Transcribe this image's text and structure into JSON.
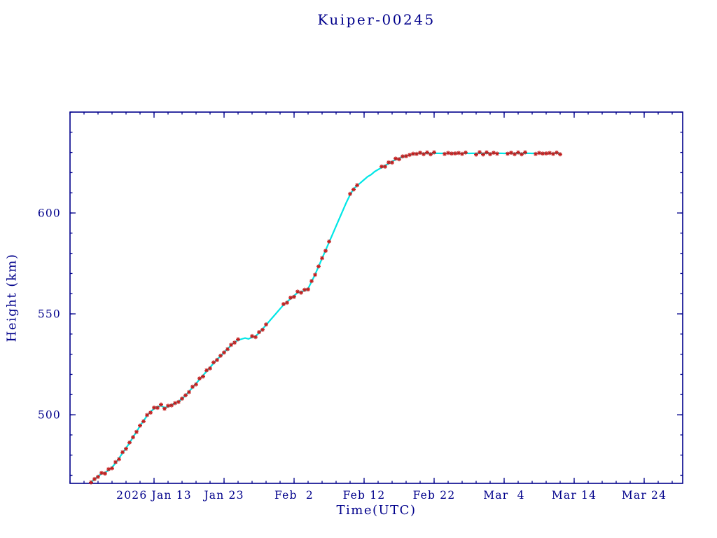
{
  "page": {
    "background": "#ffffff"
  },
  "chart_data": {
    "type": "line",
    "title": "Kuiper-00245",
    "xlabel": "Time(UTC)",
    "ylabel": "Height (km)",
    "axis_color": "#00008b",
    "grid": false,
    "legend": "none",
    "x_unit": "day of year 2026 (Jan 1 = day 1)",
    "xlim_days": [
      1,
      88.5
    ],
    "ylim": [
      466,
      650
    ],
    "x_ticks": [
      {
        "day": 13,
        "label": "2026 Jan 13"
      },
      {
        "day": 23,
        "label": "Jan 23"
      },
      {
        "day": 33,
        "label": "Feb  2"
      },
      {
        "day": 43,
        "label": "Feb 12"
      },
      {
        "day": 53,
        "label": "Feb 22"
      },
      {
        "day": 63,
        "label": "Mar  4"
      },
      {
        "day": 73,
        "label": "Mar 14"
      },
      {
        "day": 83,
        "label": "Mar 24"
      }
    ],
    "x_minor_tick_step_days": 2,
    "y_ticks": [
      500,
      550,
      600
    ],
    "y_minor_tick_step": 10,
    "series": [
      {
        "name": "height-profile-line",
        "style": "line",
        "color": "#00e6e6",
        "stroke_width": 2.2,
        "points": [
          [
            4,
            466.5
          ],
          [
            4.5,
            468.0
          ],
          [
            5,
            469.5
          ],
          [
            5.5,
            470.8
          ],
          [
            6,
            471.3
          ],
          [
            6.5,
            472.5
          ],
          [
            7,
            474.0
          ],
          [
            7.5,
            476.0
          ],
          [
            8,
            478.5
          ],
          [
            8.5,
            481.0
          ],
          [
            9,
            483.5
          ],
          [
            9.5,
            486.0
          ],
          [
            10,
            489.0
          ],
          [
            10.5,
            491.5
          ],
          [
            11,
            494.5
          ],
          [
            11.5,
            497.0
          ],
          [
            12,
            499.5
          ],
          [
            12.5,
            501.5
          ],
          [
            13,
            503.0
          ],
          [
            13.5,
            504.0
          ],
          [
            14,
            504.5
          ],
          [
            14.5,
            503.5
          ],
          [
            15,
            504.0
          ],
          [
            15.5,
            505.0
          ],
          [
            16,
            505.5
          ],
          [
            16.5,
            506.5
          ],
          [
            17,
            508.0
          ],
          [
            17.5,
            509.5
          ],
          [
            18,
            511.5
          ],
          [
            18.5,
            513.5
          ],
          [
            19,
            515.5
          ],
          [
            19.5,
            517.5
          ],
          [
            20,
            519.5
          ],
          [
            20.5,
            521.5
          ],
          [
            21,
            523.5
          ],
          [
            21.5,
            525.5
          ],
          [
            22,
            527.5
          ],
          [
            22.5,
            529.0
          ],
          [
            23,
            531.0
          ],
          [
            23.5,
            532.5
          ],
          [
            24,
            534.5
          ],
          [
            24.5,
            536.0
          ],
          [
            25,
            537.0
          ],
          [
            25.5,
            537.5
          ],
          [
            26,
            538.0
          ],
          [
            26.5,
            537.6
          ],
          [
            27,
            538.4
          ],
          [
            27.5,
            539.0
          ],
          [
            28,
            540.5
          ],
          [
            28.5,
            542.5
          ],
          [
            29,
            544.5
          ],
          [
            29.5,
            546.5
          ],
          [
            30,
            548.5
          ],
          [
            30.5,
            550.5
          ],
          [
            31,
            552.5
          ],
          [
            31.5,
            554.5
          ],
          [
            32,
            556.0
          ],
          [
            32.5,
            557.5
          ],
          [
            33,
            559.0
          ],
          [
            33.5,
            560.5
          ],
          [
            34,
            561.0
          ],
          [
            34.5,
            561.5
          ],
          [
            35,
            562.5
          ],
          [
            35.5,
            566.0
          ],
          [
            36,
            569.5
          ],
          [
            36.5,
            573.5
          ],
          [
            37,
            577.5
          ],
          [
            37.5,
            581.5
          ],
          [
            38,
            585.5
          ],
          [
            38.5,
            589.5
          ],
          [
            39,
            593.5
          ],
          [
            39.5,
            597.5
          ],
          [
            40,
            601.5
          ],
          [
            40.5,
            605.5
          ],
          [
            41,
            609.0
          ],
          [
            41.5,
            612.0
          ],
          [
            42,
            613.5
          ],
          [
            42.5,
            615.0
          ],
          [
            43,
            616.5
          ],
          [
            43.5,
            618.0
          ],
          [
            44,
            619.0
          ],
          [
            44.5,
            620.5
          ],
          [
            45,
            621.5
          ],
          [
            45.5,
            622.5
          ],
          [
            46,
            623.5
          ],
          [
            46.5,
            624.5
          ],
          [
            47,
            625.5
          ],
          [
            47.5,
            626.5
          ],
          [
            48,
            627.0
          ],
          [
            48.5,
            627.8
          ],
          [
            49,
            628.3
          ],
          [
            49.5,
            628.8
          ],
          [
            50,
            629.2
          ],
          [
            50.5,
            629.5
          ],
          [
            51,
            629.5
          ],
          [
            51.5,
            629.6
          ],
          [
            52,
            629.5
          ],
          [
            52.5,
            629.6
          ],
          [
            53,
            629.5
          ],
          [
            53.5,
            629.6
          ],
          [
            54,
            629.5
          ],
          [
            54.5,
            629.6
          ],
          [
            55,
            629.5
          ],
          [
            55.5,
            629.6
          ],
          [
            56,
            629.5
          ],
          [
            56.5,
            629.6
          ],
          [
            57,
            629.5
          ],
          [
            57.5,
            629.6
          ],
          [
            58,
            629.5
          ],
          [
            58.5,
            629.6
          ],
          [
            59,
            629.5
          ],
          [
            59.5,
            629.6
          ],
          [
            60,
            629.5
          ],
          [
            60.5,
            629.6
          ],
          [
            61,
            629.5
          ],
          [
            61.5,
            629.6
          ],
          [
            62,
            629.5
          ],
          [
            62.5,
            629.6
          ],
          [
            63,
            629.5
          ],
          [
            63.5,
            629.6
          ],
          [
            64,
            629.5
          ],
          [
            64.5,
            629.6
          ],
          [
            65,
            629.5
          ],
          [
            65.5,
            629.6
          ],
          [
            66,
            629.5
          ],
          [
            66.5,
            629.6
          ],
          [
            67,
            629.5
          ],
          [
            67.5,
            629.6
          ],
          [
            68,
            629.5
          ],
          [
            68.5,
            629.6
          ],
          [
            69,
            629.5
          ],
          [
            69.5,
            629.6
          ],
          [
            70,
            629.5
          ],
          [
            70.5,
            629.6
          ],
          [
            71,
            629.5
          ]
        ]
      },
      {
        "name": "observed-height-markers",
        "style": "asterisk",
        "color": "#c41c1c",
        "marker_size": 3,
        "jitter_km": 0.55,
        "gap_day_ranges": [
          [
            25.3,
            26.7
          ],
          [
            29.3,
            31.2
          ],
          [
            38.3,
            40.7
          ],
          [
            42.3,
            45.2
          ],
          [
            53.3,
            54.2
          ],
          [
            57.8,
            58.7
          ],
          [
            62.3,
            63.2
          ],
          [
            66.3,
            67.2
          ]
        ]
      }
    ]
  }
}
